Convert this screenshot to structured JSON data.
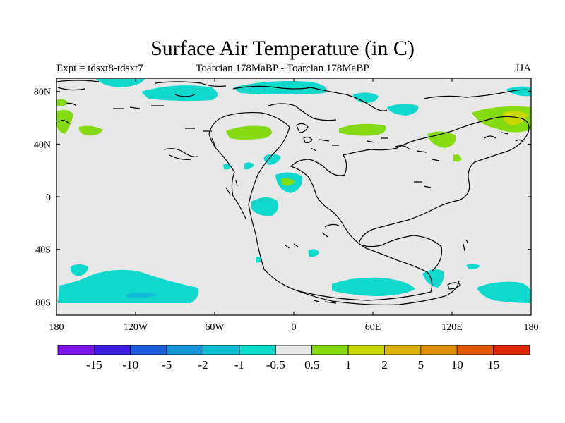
{
  "title": "Surface Air Temperature (in C)",
  "left_subtitle": "Expt = tdsxt8-tdsxt7",
  "center_subtitle": "Toarcian 178MaBP - Toarcian 178MaBP",
  "right_subtitle": "JJA",
  "map": {
    "lon_range": [
      -180,
      180
    ],
    "lat_range": [
      -90,
      90
    ],
    "background_color": "#e8e8e8",
    "lon_ticks": [
      {
        "value": -180,
        "label": "180"
      },
      {
        "value": -120,
        "label": "120W"
      },
      {
        "value": -60,
        "label": "60W"
      },
      {
        "value": 0,
        "label": "0"
      },
      {
        "value": 60,
        "label": "60E"
      },
      {
        "value": 120,
        "label": "120E"
      },
      {
        "value": 180,
        "label": "180"
      }
    ],
    "lat_ticks": [
      {
        "value": 80,
        "label": "80N"
      },
      {
        "value": 40,
        "label": "40N"
      },
      {
        "value": 0,
        "label": "0"
      },
      {
        "value": -40,
        "label": "40S"
      },
      {
        "value": -80,
        "label": "80S"
      }
    ]
  },
  "colorbar": {
    "colors": [
      "#7b16e6",
      "#3b1ee0",
      "#1a5fdc",
      "#1596dc",
      "#0fbcd8",
      "#11d8cc",
      "#e8e8e8",
      "#84dc10",
      "#c8d800",
      "#e0b000",
      "#e08c00",
      "#e05a00",
      "#e02800"
    ],
    "labels": [
      "-15",
      "-10",
      "-5",
      "-2",
      "-1",
      "-0.5",
      "0.5",
      "1",
      "2",
      "5",
      "10",
      "15"
    ]
  }
}
